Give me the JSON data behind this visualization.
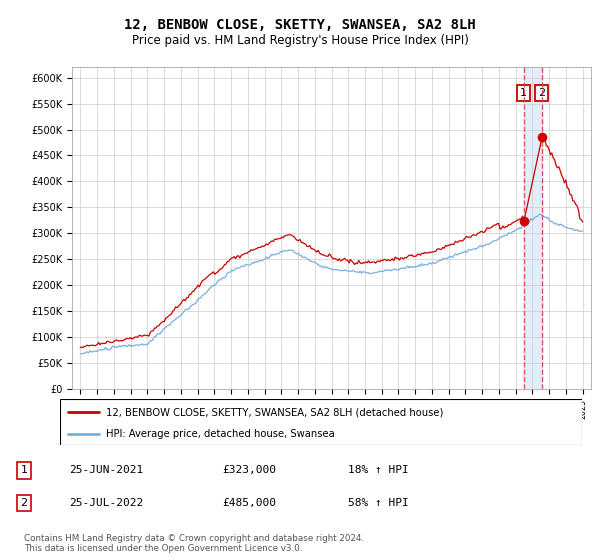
{
  "title": "12, BENBOW CLOSE, SKETTY, SWANSEA, SA2 8LH",
  "subtitle": "Price paid vs. HM Land Registry's House Price Index (HPI)",
  "title_fontsize": 10,
  "subtitle_fontsize": 8.5,
  "ylim": [
    0,
    620000
  ],
  "yticks": [
    0,
    50000,
    100000,
    150000,
    200000,
    250000,
    300000,
    350000,
    400000,
    450000,
    500000,
    550000,
    600000
  ],
  "ytick_labels": [
    "£0",
    "£50K",
    "£100K",
    "£150K",
    "£200K",
    "£250K",
    "£300K",
    "£350K",
    "£400K",
    "£450K",
    "£500K",
    "£550K",
    "£600K"
  ],
  "house_color": "#cc0000",
  "hpi_color": "#7aade0",
  "vline_color": "#dd4444",
  "shade_color": "#d8e8f8",
  "transaction1_date": 2021.47,
  "transaction1_price": 323000,
  "transaction2_date": 2022.56,
  "transaction2_price": 485000,
  "legend_house": "12, BENBOW CLOSE, SKETTY, SWANSEA, SA2 8LH (detached house)",
  "legend_hpi": "HPI: Average price, detached house, Swansea",
  "table_row1": [
    "1",
    "25-JUN-2021",
    "£323,000",
    "18% ↑ HPI"
  ],
  "table_row2": [
    "2",
    "25-JUL-2022",
    "£485,000",
    "58% ↑ HPI"
  ],
  "footer": "Contains HM Land Registry data © Crown copyright and database right 2024.\nThis data is licensed under the Open Government Licence v3.0.",
  "background_color": "#ffffff",
  "grid_color": "#cccccc"
}
